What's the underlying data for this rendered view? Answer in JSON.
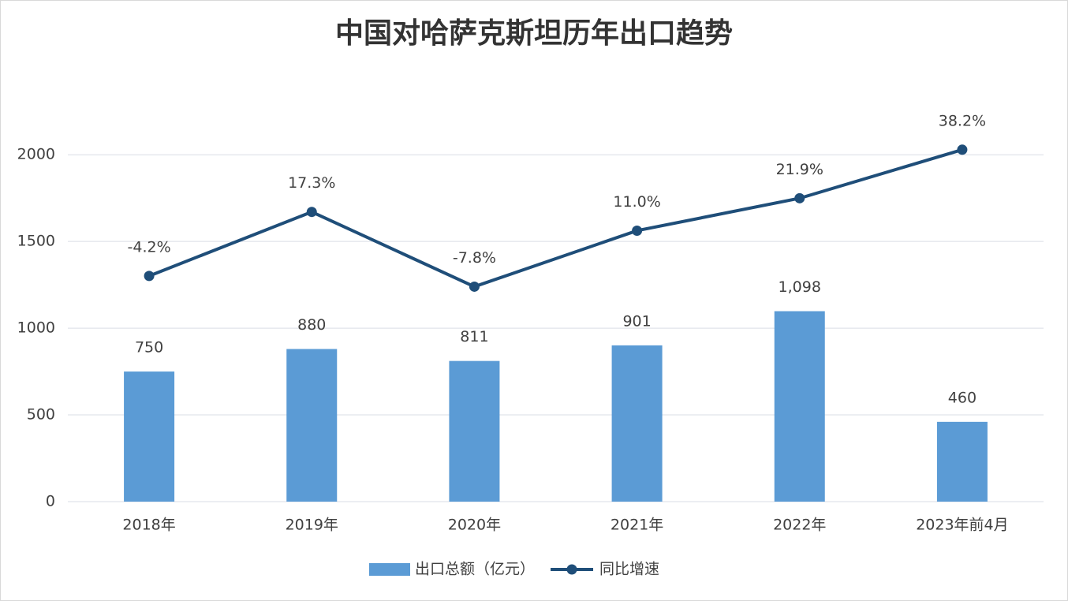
{
  "chart_data": {
    "type": "combo",
    "title": "中国对哈萨克斯坦历年出口趋势",
    "categories": [
      "2018年",
      "2019年",
      "2020年",
      "2021年",
      "2022年",
      "2023年前4月"
    ],
    "series": [
      {
        "name": "出口总额（亿元）",
        "type": "bar",
        "color": "#5b9bd5",
        "values": [
          750,
          880,
          811,
          901,
          1098,
          460
        ],
        "value_labels": [
          "750",
          "880",
          "811",
          "901",
          "1,098",
          "460"
        ]
      },
      {
        "name": "同比增速",
        "type": "line",
        "axis": "y2",
        "color": "#1f4e79",
        "values": [
          -4.2,
          17.3,
          -7.8,
          11.0,
          21.9,
          38.2
        ],
        "value_labels": [
          "-4.2%",
          "17.3%",
          "-7.8%",
          "11.0%",
          "21.9%",
          "38.2%"
        ]
      }
    ],
    "ylim": [
      0,
      2060
    ],
    "yticks": [
      0,
      500,
      1000,
      1500,
      2000
    ],
    "y2lim": [
      -80,
      40
    ],
    "grid": true,
    "legend": "bottom"
  }
}
